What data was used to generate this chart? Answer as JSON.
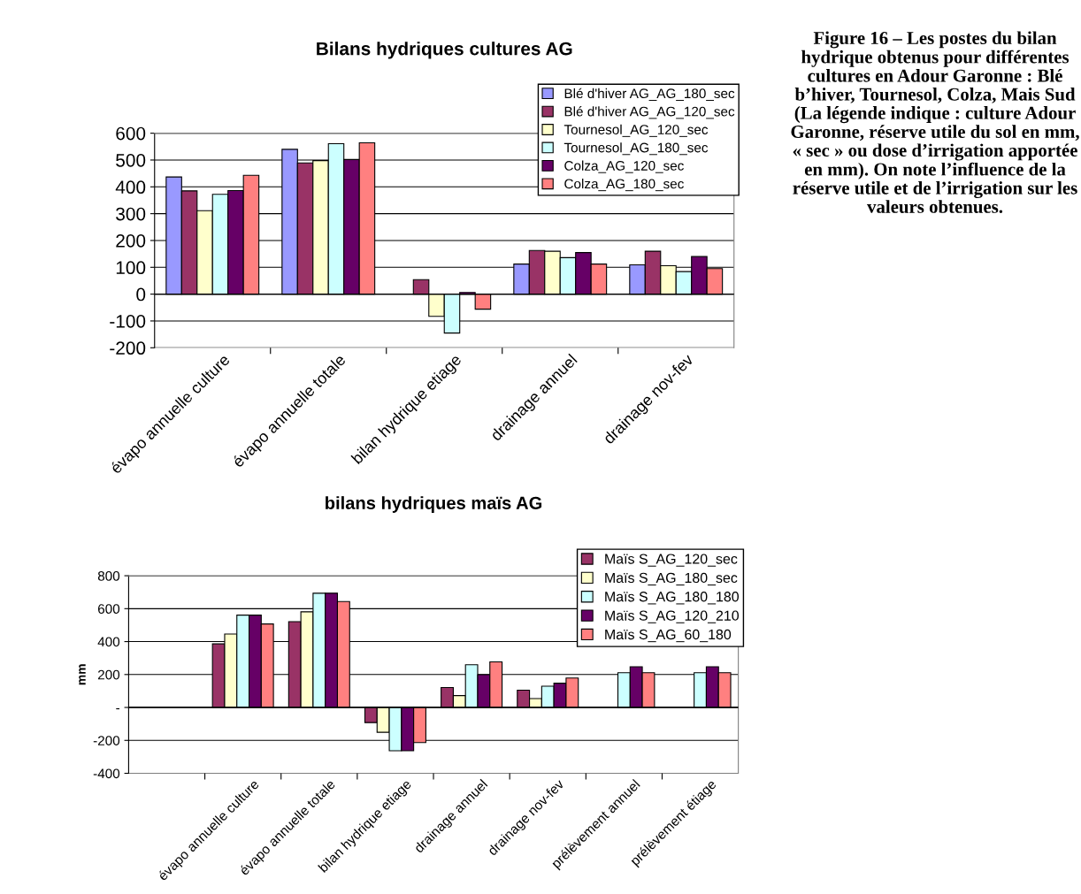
{
  "chart_data": [
    {
      "type": "bar",
      "title": "Bilans hydriques cultures AG",
      "categories": [
        "évapo annuelle culture",
        "évapo annuelle totale",
        "bilan hydrique etiage",
        "drainage annuel",
        "drainage nov-fev"
      ],
      "series": [
        {
          "name": "Blé d'hiver AG_AG_180_sec",
          "color": "#9999ff",
          "values": [
            437,
            540,
            null,
            112,
            109
          ]
        },
        {
          "name": "Blé d'hiver AG_AG_120_sec",
          "color": "#993366",
          "values": [
            385,
            489,
            54,
            163,
            160
          ]
        },
        {
          "name": "Tournesol_AG_120_sec",
          "color": "#ffffcc",
          "values": [
            311,
            498,
            -83,
            160,
            106
          ]
        },
        {
          "name": "Tournesol_AG_180_sec",
          "color": "#ccffff",
          "values": [
            372,
            561,
            -145,
            136,
            84
          ]
        },
        {
          "name": "Colza_AG_120_sec",
          "color": "#660066",
          "values": [
            386,
            502,
            6,
            155,
            140
          ]
        },
        {
          "name": "Colza_AG_180_sec",
          "color": "#ff8080",
          "values": [
            443,
            564,
            -56,
            112,
            95
          ]
        }
      ],
      "ylim": [
        -200,
        600
      ],
      "yticks": [
        -200,
        -100,
        0,
        100,
        200,
        300,
        400,
        500,
        600
      ],
      "grid": "y",
      "legend": "top right",
      "annotations": [
        "Figure 16 – Les postes du bilan hydrique obtenus pour différentes cultures en Adour Garonne : Blé b’hiver, Tournesol, Colza, Mais Sud (La légende indique : culture Adour Garonne, réserve utile du sol en mm, « sec » ou dose d’irrigation apportée en mm). On note l’influence de la réserve utile et de l’irrigation sur les valeurs obtenues."
      ]
    },
    {
      "type": "bar",
      "title": "bilans hydriques maïs AG",
      "ylabel": "mm",
      "categories": [
        null,
        "évapo annuelle culture",
        "évapo annuelle totale",
        "bilan hydrique etiage",
        "drainage annuel",
        "drainage nov-fev",
        "prélèvement annuel",
        "prélèvement étiage"
      ],
      "series": [
        {
          "name": "Maïs S_AG_120_sec",
          "color": "#993366",
          "values": [
            null,
            386,
            521,
            -92,
            121,
            105,
            null,
            null
          ]
        },
        {
          "name": "Maïs S_AG_180_sec",
          "color": "#ffffcc",
          "values": [
            null,
            446,
            581,
            -151,
            72,
            54,
            null,
            null
          ]
        },
        {
          "name": "Maïs S_AG_180_180",
          "color": "#ccffff",
          "values": [
            null,
            561,
            694,
            -263,
            259,
            129,
            211,
            211
          ]
        },
        {
          "name": "Maïs S_AG_120_210",
          "color": "#660066",
          "values": [
            null,
            561,
            694,
            -263,
            199,
            147,
            247,
            247
          ]
        },
        {
          "name": "Maïs S_AG_60_180",
          "color": "#ff8080",
          "values": [
            null,
            507,
            643,
            -213,
            277,
            179,
            211,
            211
          ]
        }
      ],
      "ylim": [
        -400,
        800
      ],
      "yticks": [
        -400,
        -200,
        {
          "value": 0,
          "label": "-"
        },
        200,
        400,
        600,
        800
      ],
      "grid": "y",
      "legend": "top right"
    }
  ]
}
